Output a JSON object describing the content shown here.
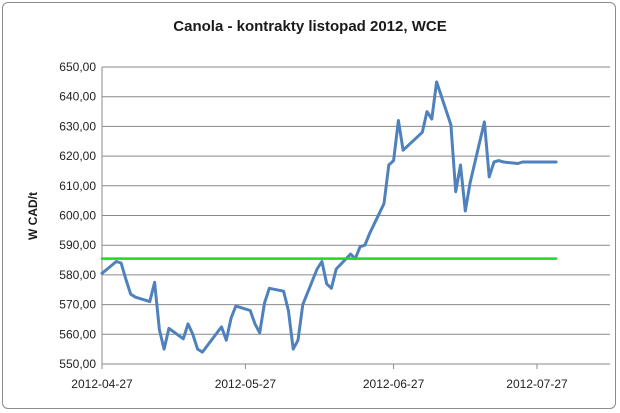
{
  "chart_data": {
    "type": "line",
    "title": "Canola - kontrakty listopad 2012, WCE",
    "xlabel": "",
    "ylabel": "W CAD/t",
    "ylim": [
      550,
      650
    ],
    "yticks": [
      "550,00",
      "560,00",
      "570,00",
      "580,00",
      "590,00",
      "600,00",
      "610,00",
      "620,00",
      "630,00",
      "640,00",
      "650,00"
    ],
    "xticks": [
      "2012-04-27",
      "2012-05-27",
      "2012-06-27",
      "2012-07-27"
    ],
    "grid": true,
    "legend": "none",
    "series": [
      {
        "color": "#4f81bd",
        "x": [
          "2012-04-27",
          "2012-04-30",
          "2012-05-01",
          "2012-05-02",
          "2012-05-03",
          "2012-05-04",
          "2012-05-07",
          "2012-05-08",
          "2012-05-09",
          "2012-05-10",
          "2012-05-11",
          "2012-05-14",
          "2012-05-15",
          "2012-05-16",
          "2012-05-17",
          "2012-05-18",
          "2012-05-22",
          "2012-05-23",
          "2012-05-24",
          "2012-05-25",
          "2012-05-28",
          "2012-05-29",
          "2012-05-30",
          "2012-05-31",
          "2012-06-01",
          "2012-06-04",
          "2012-06-05",
          "2012-06-06",
          "2012-06-07",
          "2012-06-08",
          "2012-06-11",
          "2012-06-12",
          "2012-06-13",
          "2012-06-14",
          "2012-06-15",
          "2012-06-18",
          "2012-06-19",
          "2012-06-20",
          "2012-06-21",
          "2012-06-22",
          "2012-06-25",
          "2012-06-26",
          "2012-06-27",
          "2012-06-28",
          "2012-06-29",
          "2012-07-03",
          "2012-07-04",
          "2012-07-05",
          "2012-07-06",
          "2012-07-09",
          "2012-07-10",
          "2012-07-11",
          "2012-07-12",
          "2012-07-13",
          "2012-07-16",
          "2012-07-17",
          "2012-07-18",
          "2012-07-19",
          "2012-07-20",
          "2012-07-23",
          "2012-07-24",
          "2012-07-25",
          "2012-07-26",
          "2012-07-27",
          "2012-07-30",
          "2012-07-31"
        ],
        "values": [
          580.5,
          584.5,
          584.0,
          578.5,
          573.5,
          572.5,
          571.0,
          577.5,
          561.5,
          555.0,
          562.0,
          558.5,
          563.5,
          560.0,
          555.0,
          554.0,
          562.5,
          558.0,
          565.5,
          569.5,
          568.0,
          563.5,
          560.5,
          570.5,
          575.5,
          574.5,
          568.0,
          555.0,
          558.0,
          570.0,
          582.0,
          584.5,
          577.0,
          575.5,
          582.0,
          587.0,
          585.5,
          589.5,
          590.0,
          594.0,
          604.0,
          617.0,
          618.5,
          632.0,
          622.0,
          628.0,
          635.0,
          632.5,
          645.0,
          630.5,
          608.0,
          617.0,
          601.5,
          611.0,
          631.5,
          613.0,
          618.0,
          618.5,
          618.0,
          617.5,
          618.0,
          618.0,
          618.0,
          618.0,
          618.0,
          618.0
        ]
      },
      {
        "color": "#1ed91e",
        "x": [
          "2012-04-27",
          "2012-07-31"
        ],
        "values": [
          585.5,
          585.5
        ]
      }
    ]
  }
}
